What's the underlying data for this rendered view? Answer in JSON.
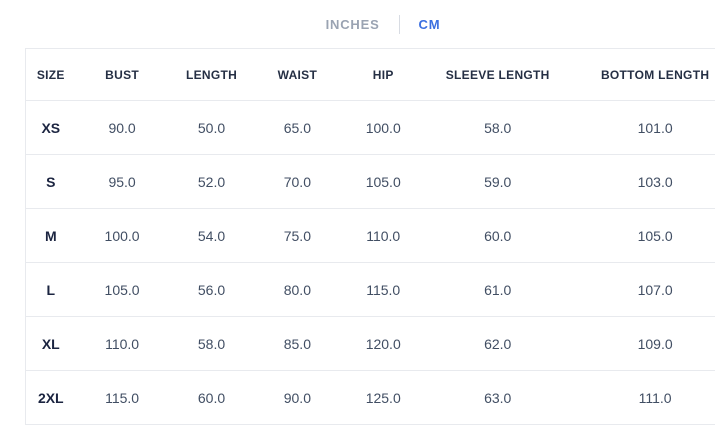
{
  "unit_toggle": {
    "options": [
      {
        "label": "INCHES",
        "active": false
      },
      {
        "label": "CM",
        "active": true
      }
    ]
  },
  "colors": {
    "accent": "#3b6fe0",
    "inactive": "#9aa3b2",
    "divider": "#d8dce3",
    "border": "#e8eaee",
    "header_text": "#252f44",
    "size_text": "#1b2440",
    "cell_text": "#414e63"
  },
  "table": {
    "columns": [
      "SIZE",
      "BUST",
      "LENGTH",
      "WAIST",
      "HIP",
      "SLEEVE LENGTH",
      "BOTTOM LENGTH"
    ],
    "column_widths_pct": [
      7,
      13,
      12,
      12,
      12,
      20,
      24
    ],
    "rows": [
      {
        "size": "XS",
        "values": [
          "90.0",
          "50.0",
          "65.0",
          "100.0",
          "58.0",
          "101.0"
        ]
      },
      {
        "size": "S",
        "values": [
          "95.0",
          "52.0",
          "70.0",
          "105.0",
          "59.0",
          "103.0"
        ]
      },
      {
        "size": "M",
        "values": [
          "100.0",
          "54.0",
          "75.0",
          "110.0",
          "60.0",
          "105.0"
        ]
      },
      {
        "size": "L",
        "values": [
          "105.0",
          "56.0",
          "80.0",
          "115.0",
          "61.0",
          "107.0"
        ]
      },
      {
        "size": "XL",
        "values": [
          "110.0",
          "58.0",
          "85.0",
          "120.0",
          "62.0",
          "109.0"
        ]
      },
      {
        "size": "2XL",
        "values": [
          "115.0",
          "60.0",
          "90.0",
          "125.0",
          "63.0",
          "111.0"
        ]
      }
    ]
  }
}
